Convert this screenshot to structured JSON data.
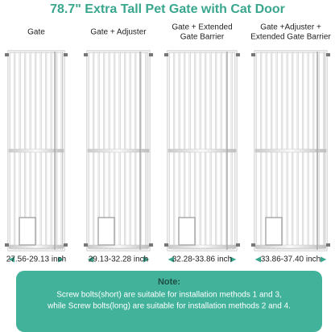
{
  "header": {
    "title": "78.7\" Extra Tall Pet Gate with Cat Door"
  },
  "columns": [
    {
      "label": [
        "Gate"
      ],
      "measurement": "27.56-29.13 inch"
    },
    {
      "label": [
        "Gate + Adjuster"
      ],
      "measurement": "29.13-32.28 inch"
    },
    {
      "label": [
        "Gate + Extended",
        "Gate Barrier"
      ],
      "measurement": "32.28-33.86 inch"
    },
    {
      "label": [
        "Gate +Adjuster +",
        "Extended Gate Barrier"
      ],
      "measurement": "33.86-37.40 inch"
    }
  ],
  "note": {
    "title": "Note:",
    "lines": [
      "Screw bolts(short) are suitable for installation methods 1 and 3,",
      "while Screw bolts(long) are suitable for installation methods 2 and 4."
    ]
  }
}
